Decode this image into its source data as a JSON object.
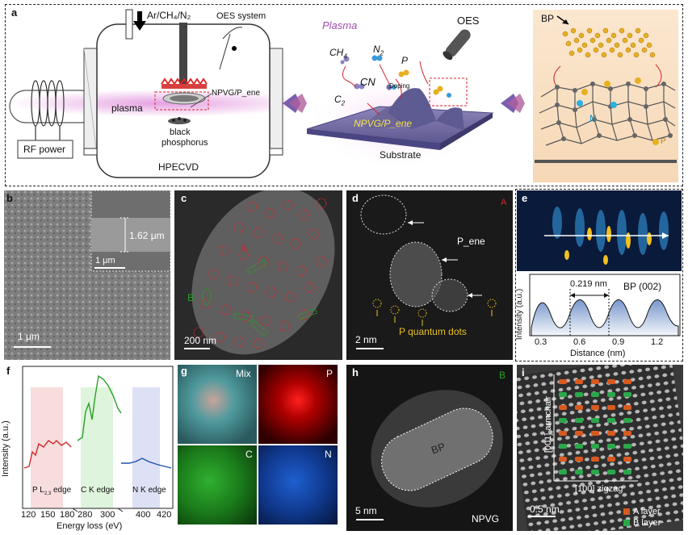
{
  "panel_labels": {
    "a": "a",
    "b": "b",
    "c": "c",
    "d": "d",
    "e": "e",
    "f": "f",
    "g": "g",
    "h": "h",
    "i": "i"
  },
  "panel_a": {
    "gas": "Ar/CH₄/N₂",
    "oes_system": "OES system",
    "plasma": "plasma",
    "sample": "NPVG/P_ene",
    "black_phosphorus_1": "black",
    "black_phosphorus_2": "phosphorus",
    "reactor": "HPECVD",
    "rf_power": "RF power",
    "mid_plasma": "Plasma",
    "ch4": "CH",
    "ch4_sub": "4",
    "n2": "N",
    "n2_sub": "2",
    "p": "P",
    "cn": "CN",
    "doping": "Doping",
    "c2": "C",
    "c2_sub": "2",
    "npvg": "NPVG/P_ene",
    "substrate": "Substrate",
    "oes": "OES",
    "bp": "BP",
    "n_atom": "N",
    "p_atom": "P"
  },
  "panel_b": {
    "inset_thickness": "1.62 μm",
    "inset_scale": "1 μm",
    "scale": "1 μm"
  },
  "panel_c": {
    "A": "A",
    "B": "B",
    "scale": "200 nm"
  },
  "panel_d": {
    "A": "A",
    "p_ene": "P_ene",
    "qd": "P quantum dots",
    "scale": "2 nm"
  },
  "panel_e": {
    "spacing": "0.219 nm",
    "bp002": "BP (002)",
    "ylabel": "Intensity (a.u.)",
    "xlabel": "Distance (nm)",
    "xticks": [
      "0.3",
      "0.6",
      "0.9",
      "1.2"
    ]
  },
  "panel_f": {
    "ylabel": "Intensity (a.u.)",
    "xlabel": "Energy loss (eV)",
    "p_edge": "P L",
    "p_edge_sub": "2,3",
    "p_edge_tail": " edge",
    "c_edge": "C K edge",
    "n_edge": "N K edge",
    "xticks": [
      "120",
      "150",
      "180",
      "280",
      "300",
      "400",
      "420"
    ]
  },
  "panel_g": {
    "mix": "Mix",
    "p": "P",
    "c": "C",
    "n": "N"
  },
  "panel_h": {
    "B": "B",
    "bp": "BP",
    "scale": "5 nm",
    "npvg": "NPVG"
  },
  "panel_i": {
    "armchair": "[001] armchair",
    "zigzag": "[100] zigzag",
    "scale": "0.5 nm",
    "a_layer": "A layer",
    "b_layer": "B layer"
  },
  "colors": {
    "plasma": "#d98ad6",
    "accent_red": "#d0282d",
    "accent_green": "#2aa02a",
    "accent_blue": "#1f4ea8",
    "arrow": "#7a5fae"
  }
}
